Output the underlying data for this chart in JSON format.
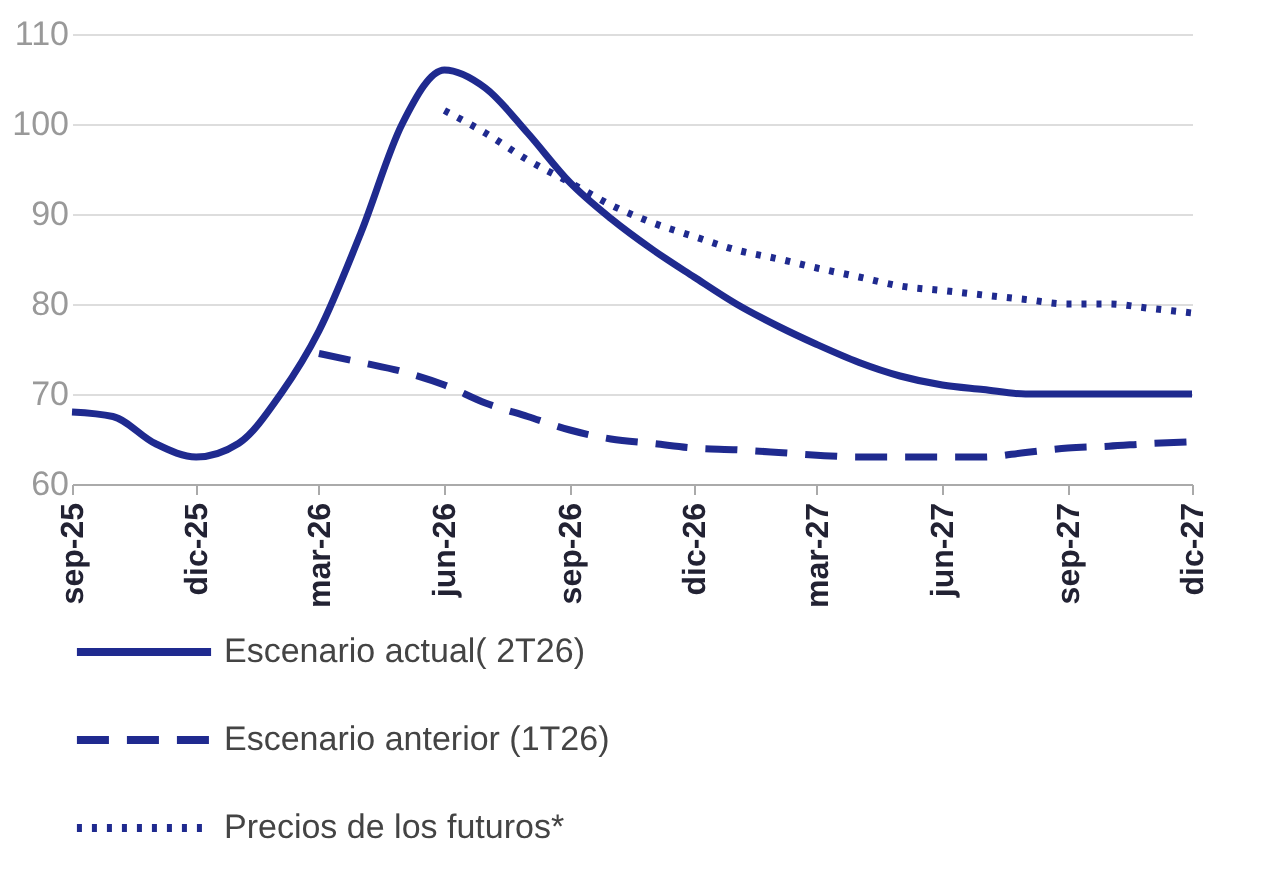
{
  "chart_data": {
    "type": "line",
    "x": [
      "2025-09",
      "2025-10",
      "2025-11",
      "2025-12",
      "2026-01",
      "2026-02",
      "2026-03",
      "2026-04",
      "2026-05",
      "2026-06",
      "2026-07",
      "2026-08",
      "2026-09",
      "2026-10",
      "2026-11",
      "2026-12",
      "2027-01",
      "2027-02",
      "2027-03",
      "2027-04",
      "2027-05",
      "2027-06",
      "2027-07",
      "2027-08",
      "2027-09",
      "2027-10",
      "2027-11",
      "2027-12"
    ],
    "series": [
      {
        "name": "Escenario actual( 2T26)",
        "color": "#1f2a8f",
        "line_style": "solid",
        "values": [
          68,
          67.5,
          64.5,
          63,
          64.5,
          70,
          77,
          88,
          100,
          106,
          104,
          99,
          93.5,
          89.5,
          86,
          83,
          80,
          77.5,
          75.5,
          73.5,
          72,
          71,
          70.5,
          70,
          70,
          70,
          70,
          70
        ]
      },
      {
        "name": "Escenario anterior (1T26)",
        "color": "#1f2a8f",
        "line_style": "dashed",
        "values": [
          null,
          null,
          null,
          null,
          null,
          null,
          74.5,
          73.5,
          72.5,
          71,
          69,
          67.5,
          66,
          65,
          64.5,
          64,
          63.8,
          63.5,
          63.2,
          63,
          63,
          63,
          63,
          63.5,
          64,
          64.2,
          64.5,
          64.7
        ]
      },
      {
        "name": "Precios de los futuros*",
        "color": "#1f2a8f",
        "line_style": "dotted",
        "values": [
          null,
          null,
          null,
          null,
          null,
          null,
          null,
          null,
          null,
          101.5,
          99,
          96,
          93.5,
          91,
          89,
          87.5,
          86,
          85,
          84,
          83,
          82,
          81.5,
          81,
          80.5,
          80,
          80,
          79.5,
          79
        ]
      }
    ],
    "xlim": [
      "2025-09",
      "2027-12"
    ],
    "xticks": [
      {
        "value": "2025-09",
        "label": "sep-25"
      },
      {
        "value": "2025-12",
        "label": "dic-25"
      },
      {
        "value": "2026-03",
        "label": "mar-26"
      },
      {
        "value": "2026-06",
        "label": "jun-26"
      },
      {
        "value": "2026-09",
        "label": "sep-26"
      },
      {
        "value": "2026-12",
        "label": "dic-26"
      },
      {
        "value": "2027-03",
        "label": "mar-27"
      },
      {
        "value": "2027-06",
        "label": "jun-27"
      },
      {
        "value": "2027-09",
        "label": "sep-27"
      },
      {
        "value": "2027-12",
        "label": "dic-27"
      }
    ],
    "ylim": [
      60,
      110
    ],
    "yticks": [
      60,
      70,
      80,
      90,
      100,
      110
    ],
    "grid": "y",
    "legend": "bottom left",
    "marker": "none"
  }
}
